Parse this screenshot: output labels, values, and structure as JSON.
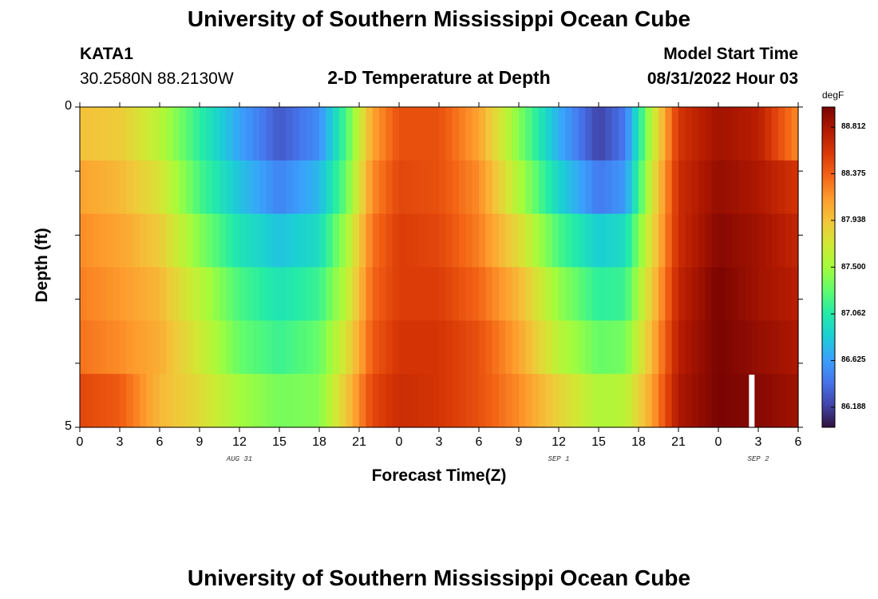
{
  "header": {
    "title": "University of Southern Mississippi Ocean Cube",
    "station_id": "KATA1",
    "coordinates": "30.2580N  88.2130W",
    "plot_title": "2-D Temperature at Depth",
    "model_start_label": "Model Start Time",
    "model_start_value": "08/31/2022 Hour 03"
  },
  "footer": {
    "title": "University of Southern Mississippi Ocean Cube"
  },
  "colorbar": {
    "unit": "degF",
    "ticks": [
      "88.812",
      "88.375",
      "87.938",
      "87.500",
      "87.062",
      "86.625",
      "86.188"
    ],
    "colors": [
      "#30123b",
      "#4145ab",
      "#4675ed",
      "#39a2fc",
      "#1bcfd4",
      "#24eca6",
      "#61fc6c",
      "#a4fc3b",
      "#d1e834",
      "#f3c63a",
      "#fe9b2d",
      "#f36315",
      "#d93806",
      "#b11901",
      "#7a0402"
    ]
  },
  "chart_data": {
    "type": "heatmap",
    "title": "2-D Temperature at Depth",
    "xlabel": "Forecast Time(Z)",
    "ylabel": "Depth (ft)",
    "x_tick_labels": [
      "0",
      "3",
      "6",
      "9",
      "12",
      "15",
      "18",
      "21",
      "0",
      "3",
      "6",
      "9",
      "12",
      "15",
      "18",
      "21",
      "0",
      "3",
      "6"
    ],
    "date_labels": [
      "AUG 31",
      "SEP 1",
      "SEP 2"
    ],
    "y_tick_labels": [
      "0",
      "5"
    ],
    "ylim": [
      0,
      5
    ],
    "x_hours_range": [
      0,
      54
    ],
    "depth_layers": [
      0,
      1,
      2,
      3,
      4,
      5
    ],
    "colorbar_range_degF": [
      86.0,
      89.0
    ],
    "series_profile_degF": [
      {
        "hour": 0,
        "values": [
          87.95,
          88.1,
          88.2,
          88.25,
          88.3,
          88.5
        ]
      },
      {
        "hour": 3,
        "values": [
          87.9,
          88.0,
          88.1,
          88.15,
          88.2,
          88.4
        ]
      },
      {
        "hour": 6,
        "values": [
          87.6,
          87.75,
          87.9,
          88.0,
          88.05,
          88.0
        ]
      },
      {
        "hour": 9,
        "values": [
          87.1,
          87.2,
          87.4,
          87.6,
          87.7,
          87.8
        ]
      },
      {
        "hour": 12,
        "values": [
          86.65,
          86.8,
          87.0,
          87.2,
          87.3,
          87.5
        ]
      },
      {
        "hour": 15,
        "values": [
          86.3,
          86.5,
          86.8,
          87.0,
          87.15,
          87.35
        ]
      },
      {
        "hour": 18,
        "values": [
          86.55,
          86.75,
          86.95,
          87.15,
          87.3,
          87.4
        ]
      },
      {
        "hour": 20,
        "values": [
          87.2,
          87.3,
          87.5,
          87.6,
          87.75,
          87.9
        ]
      },
      {
        "hour": 22,
        "values": [
          88.1,
          88.2,
          88.3,
          88.35,
          88.4,
          88.5
        ]
      },
      {
        "hour": 24,
        "values": [
          88.45,
          88.5,
          88.55,
          88.55,
          88.6,
          88.65
        ]
      },
      {
        "hour": 27,
        "values": [
          88.45,
          88.45,
          88.5,
          88.55,
          88.6,
          88.6
        ]
      },
      {
        "hour": 30,
        "values": [
          88.1,
          88.2,
          88.25,
          88.35,
          88.45,
          88.45
        ]
      },
      {
        "hour": 33,
        "values": [
          87.4,
          87.55,
          87.8,
          88.0,
          88.1,
          88.2
        ]
      },
      {
        "hour": 36,
        "values": [
          86.7,
          86.9,
          87.2,
          87.45,
          87.6,
          87.85
        ]
      },
      {
        "hour": 39,
        "values": [
          86.2,
          86.45,
          86.85,
          87.1,
          87.3,
          87.55
        ]
      },
      {
        "hour": 41,
        "values": [
          86.45,
          86.6,
          86.95,
          87.15,
          87.35,
          87.6
        ]
      },
      {
        "hour": 43,
        "values": [
          87.6,
          87.7,
          87.8,
          87.9,
          88.0,
          88.1
        ]
      },
      {
        "hour": 45,
        "values": [
          88.6,
          88.65,
          88.65,
          88.7,
          88.75,
          88.8
        ]
      },
      {
        "hour": 48,
        "values": [
          88.85,
          88.9,
          88.95,
          89.0,
          89.0,
          89.0
        ]
      },
      {
        "hour": 51,
        "values": [
          88.75,
          88.8,
          88.85,
          88.85,
          88.9,
          88.95
        ]
      },
      {
        "hour": 54,
        "values": [
          88.2,
          88.6,
          88.7,
          88.75,
          88.8,
          88.85
        ]
      }
    ]
  }
}
